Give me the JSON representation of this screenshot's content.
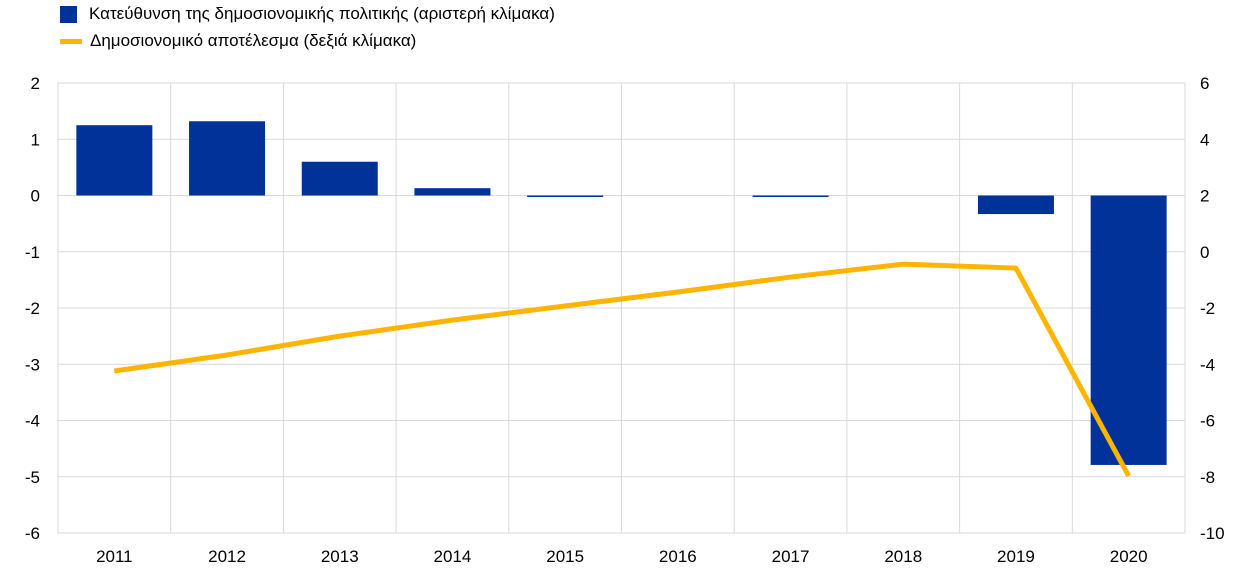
{
  "chart_data": {
    "type": "bar+line",
    "categories": [
      "2011",
      "2012",
      "2013",
      "2014",
      "2015",
      "2016",
      "2017",
      "2018",
      "2019",
      "2020"
    ],
    "series": [
      {
        "name": "Κατεύθυνση της δημοσιονομικής πολιτικής (αριστερή κλίμακα)",
        "type": "bar",
        "axis": "left",
        "color": "#003299",
        "values": [
          1.25,
          1.32,
          0.6,
          0.13,
          -0.02,
          0.0,
          -0.02,
          0.0,
          -0.33,
          -4.79
        ]
      },
      {
        "name": "Δημοσιονομικό αποτέλεσμα (δεξιά κλίμακα)",
        "type": "line",
        "axis": "right",
        "color": "#FFB400",
        "values": [
          -4.24,
          -3.67,
          -3.0,
          -2.43,
          -1.93,
          -1.43,
          -0.9,
          -0.44,
          -0.58,
          -7.97
        ]
      }
    ],
    "ylim_left": [
      -6,
      2
    ],
    "yticks_left": [
      "2",
      "1",
      "0",
      "-1",
      "-2",
      "-3",
      "-4",
      "-5",
      "-6"
    ],
    "ylim_right": [
      -10,
      6
    ],
    "yticks_right": [
      "6",
      "4",
      "2",
      "0",
      "-2",
      "-4",
      "-6",
      "-8",
      "-10"
    ],
    "grid": true,
    "legend": "top-left"
  }
}
